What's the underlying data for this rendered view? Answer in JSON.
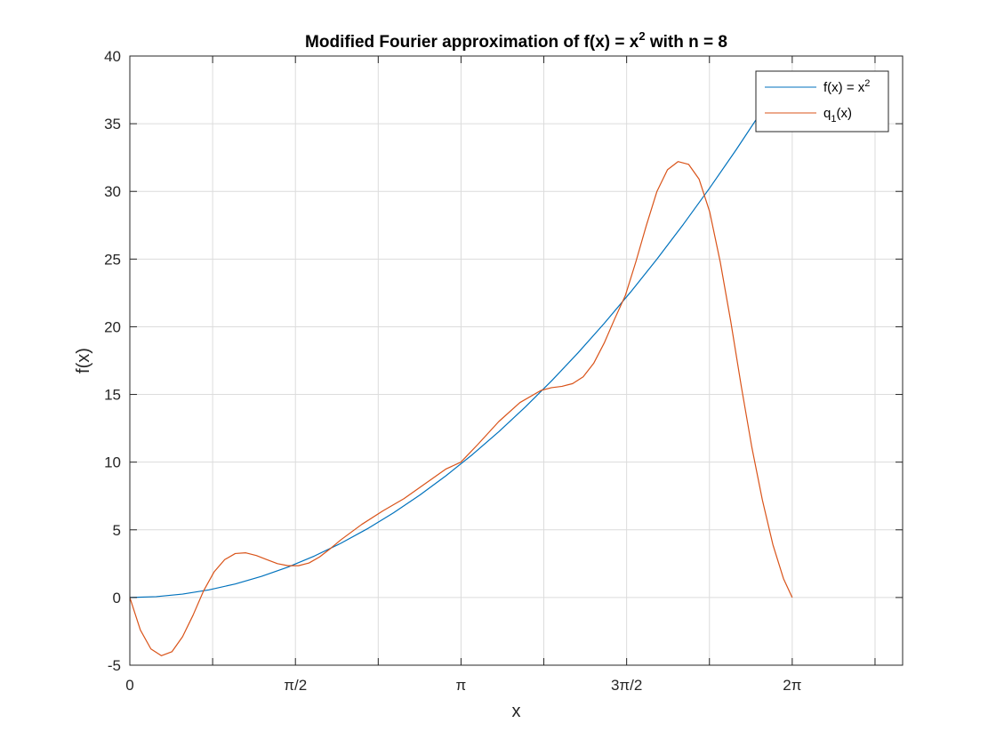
{
  "chart_data": {
    "type": "line",
    "title": "Modified Fourier approximation of f(x) = x",
    "title_sup": "2",
    "title_suffix": " with n = 8",
    "xlabel": "x",
    "ylabel": "f(x)",
    "xlim": [
      0,
      7.330383
    ],
    "ylim": [
      -5,
      40
    ],
    "grid": true,
    "legend_position": "top-right",
    "x_ticks": [
      {
        "value": 0,
        "label": "0"
      },
      {
        "value": 0.785398,
        "label": ""
      },
      {
        "value": 1.570796,
        "label": "π/2"
      },
      {
        "value": 2.356194,
        "label": ""
      },
      {
        "value": 3.141593,
        "label": "π"
      },
      {
        "value": 3.926991,
        "label": ""
      },
      {
        "value": 4.712389,
        "label": "3π/2"
      },
      {
        "value": 5.497787,
        "label": ""
      },
      {
        "value": 6.283185,
        "label": "2π"
      },
      {
        "value": 7.068583,
        "label": ""
      }
    ],
    "y_ticks": [
      -5,
      0,
      5,
      10,
      15,
      20,
      25,
      30,
      35,
      40
    ],
    "series": [
      {
        "name": "f(x) = x",
        "name_sup": "2",
        "color": "#0072BD",
        "x": [
          0,
          0.25,
          0.5,
          0.75,
          1.0,
          1.25,
          1.5,
          1.75,
          2.0,
          2.25,
          2.5,
          2.75,
          3.0,
          3.25,
          3.5,
          3.75,
          4.0,
          4.25,
          4.5,
          4.75,
          5.0,
          5.25,
          5.5,
          5.75,
          6.0,
          6.2
        ],
        "y": [
          0,
          0.0625,
          0.25,
          0.5625,
          1.0,
          1.5625,
          2.25,
          3.0625,
          4.0,
          5.0625,
          6.25,
          7.5625,
          9.0,
          10.5625,
          12.25,
          14.0625,
          16.0,
          18.0625,
          20.25,
          22.5625,
          25.0,
          27.5625,
          30.25,
          33.0625,
          36.0,
          38.44
        ]
      },
      {
        "name": "q",
        "name_sub": "1",
        "name_suffix": "(x)",
        "color": "#D95319",
        "x": [
          0,
          0.1,
          0.2,
          0.3,
          0.4,
          0.5,
          0.6,
          0.7,
          0.8,
          0.9,
          1.0,
          1.1,
          1.2,
          1.3,
          1.4,
          1.5,
          1.6,
          1.7,
          1.8,
          1.9,
          2.0,
          2.2,
          2.4,
          2.6,
          2.8,
          3.0,
          3.14,
          3.3,
          3.5,
          3.7,
          3.9,
          4.0,
          4.1,
          4.2,
          4.3,
          4.4,
          4.5,
          4.6,
          4.7,
          4.8,
          4.9,
          5.0,
          5.1,
          5.2,
          5.3,
          5.4,
          5.5,
          5.6,
          5.7,
          5.8,
          5.9,
          6.0,
          6.1,
          6.2,
          6.283
        ],
        "y": [
          0,
          -2.4,
          -3.8,
          -4.3,
          -4.0,
          -2.9,
          -1.3,
          0.5,
          1.9,
          2.8,
          3.25,
          3.3,
          3.1,
          2.8,
          2.5,
          2.35,
          2.35,
          2.55,
          3.0,
          3.6,
          4.25,
          5.4,
          6.4,
          7.3,
          8.4,
          9.5,
          10.0,
          11.3,
          13.0,
          14.4,
          15.3,
          15.5,
          15.6,
          15.8,
          16.3,
          17.3,
          18.8,
          20.6,
          22.3,
          24.8,
          27.5,
          30.0,
          31.6,
          32.2,
          32.0,
          30.9,
          28.5,
          24.8,
          20.4,
          15.6,
          11.1,
          7.2,
          3.9,
          1.4,
          0.0
        ]
      }
    ]
  }
}
